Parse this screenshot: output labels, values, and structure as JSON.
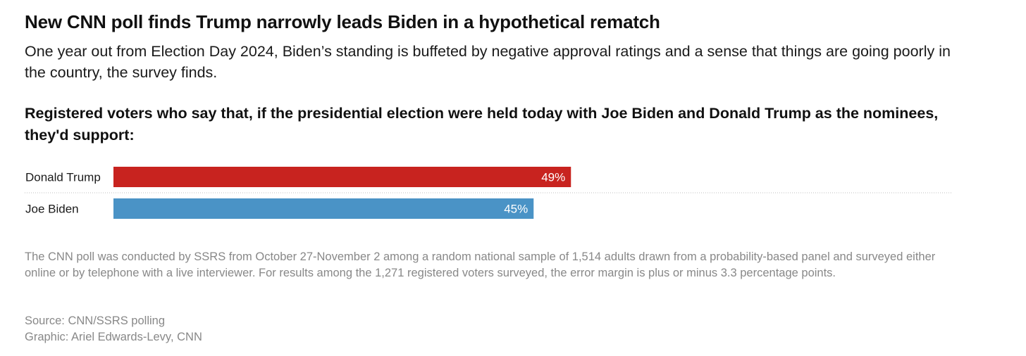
{
  "header": {
    "title": "New CNN poll finds Trump narrowly leads Biden in a hypothetical rematch",
    "subtitle": "One year out from Election Day 2024, Biden’s standing is buffeted by negative approval ratings and a sense that things are going poorly in the country, the survey finds.",
    "question": "Registered voters who say that, if the presidential election were held today with Joe Biden and Donald Trump as the nominees, they'd support:"
  },
  "chart_data": {
    "type": "bar",
    "orientation": "horizontal",
    "title": "Registered voters who say that, if the presidential election were held today with Joe Biden and Donald Trump as the nominees, they'd support:",
    "categories": [
      "Donald Trump",
      "Joe Biden"
    ],
    "values": [
      49,
      45
    ],
    "value_labels": [
      "49%",
      "45%"
    ],
    "colors": [
      "#c8231f",
      "#4a93c6"
    ],
    "xlim": [
      0,
      100
    ],
    "unit": "%"
  },
  "footer": {
    "note": "The CNN poll was conducted by SSRS from October 27-November 2 among a random national sample of 1,514 adults drawn from a probability-based panel and surveyed either online or by telephone with a live interviewer. For results among the 1,271 registered voters surveyed, the error margin is plus or minus 3.3 percentage points.",
    "source": "Source: CNN/SSRS polling",
    "graphic": "Graphic: Ariel Edwards-Levy, CNN"
  }
}
